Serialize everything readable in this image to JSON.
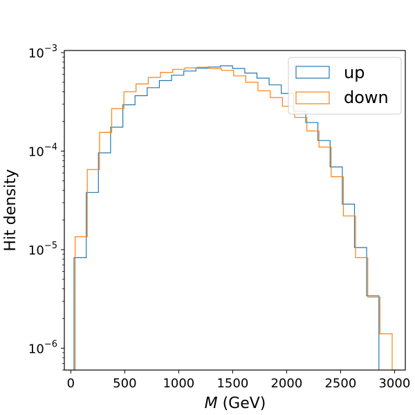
{
  "chart_data": {
    "type": "histogram",
    "xlabel_italic": "M",
    "xlabel_unit": " (GeV)",
    "ylabel": "Hit density",
    "xlim": [
      -60,
      3100
    ],
    "ylim": [
      6e-07,
      0.00105
    ],
    "yscale": "log",
    "grid": false,
    "legend_position": "top-right",
    "x_ticks": [
      {
        "value": 0,
        "label": "0"
      },
      {
        "value": 500,
        "label": "500"
      },
      {
        "value": 1000,
        "label": "1000"
      },
      {
        "value": 1500,
        "label": "1500"
      },
      {
        "value": 2000,
        "label": "2000"
      },
      {
        "value": 2500,
        "label": "2500"
      },
      {
        "value": 3000,
        "label": "3000"
      }
    ],
    "y_ticks": [
      {
        "value": 1e-06,
        "base": "10",
        "exp": "−6"
      },
      {
        "value": 1e-05,
        "base": "10",
        "exp": "−5"
      },
      {
        "value": 0.0001,
        "base": "10",
        "exp": "−4"
      },
      {
        "value": 0.001,
        "base": "10",
        "exp": "−3"
      }
    ],
    "series": [
      {
        "name": "up",
        "color": "#1f77b4",
        "edges": [
          30,
          143,
          256,
          369,
          482,
          595,
          708,
          821,
          934,
          1047,
          1160,
          1273,
          1386,
          1499,
          1612,
          1725,
          1838,
          1951,
          2064,
          2177,
          2290,
          2403,
          2516,
          2629,
          2742,
          2855
        ],
        "values": [
          8.3e-06,
          3.8e-05,
          9.6e-05,
          0.000175,
          0.000295,
          0.000365,
          0.00044,
          0.00052,
          0.00059,
          0.00065,
          0.000695,
          0.000715,
          0.000735,
          0.00069,
          0.00062,
          0.00055,
          0.00047,
          0.000385,
          0.000255,
          0.000195,
          0.000128,
          6.9e-05,
          2.9e-05,
          1.05e-05,
          3.4e-06
        ]
      },
      {
        "name": "down",
        "color": "#ff7f0e",
        "edges": [
          40,
          153,
          266,
          379,
          492,
          605,
          718,
          831,
          944,
          1057,
          1170,
          1283,
          1396,
          1509,
          1622,
          1735,
          1848,
          1961,
          2074,
          2187,
          2300,
          2413,
          2526,
          2639,
          2752,
          2865,
          2978,
          3040
        ],
        "values": [
          1.35e-05,
          6.5e-05,
          0.000155,
          0.00027,
          0.0004,
          0.00048,
          0.00056,
          0.00063,
          0.000675,
          0.0007,
          0.00071,
          0.00069,
          0.00066,
          0.00058,
          0.0005,
          0.00041,
          0.00035,
          0.000285,
          0.00022,
          0.00016,
          0.00011,
          5.5e-05,
          2.2e-05,
          8.3e-06,
          3.3e-06,
          1.4e-06,
          6e-07
        ]
      }
    ]
  }
}
